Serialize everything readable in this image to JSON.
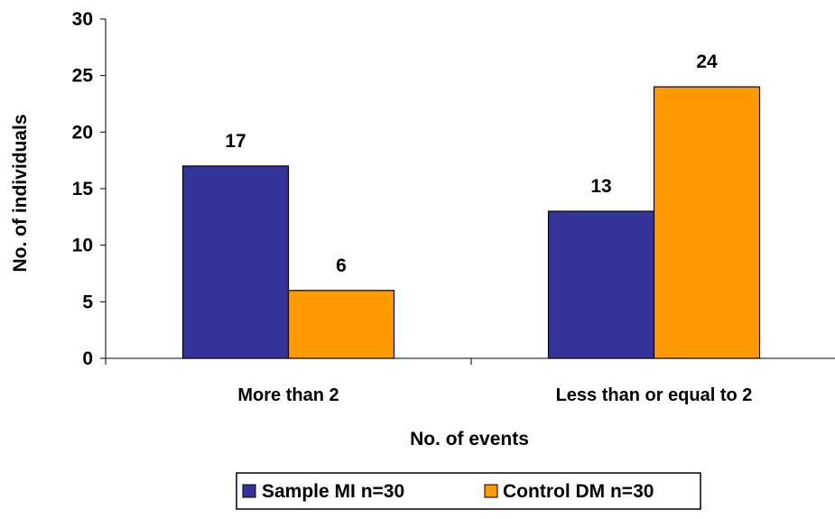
{
  "chart_data": {
    "type": "bar",
    "title": "",
    "xlabel": "No. of events",
    "ylabel": "No. of individuals",
    "categories": [
      "More than 2",
      "Less than or equal to 2"
    ],
    "series": [
      {
        "name": "Sample MI n=30",
        "values": [
          17,
          13
        ],
        "color": "#333399"
      },
      {
        "name": "Control DM n=30",
        "values": [
          6,
          24
        ],
        "color": "#FF9900"
      }
    ],
    "ylim": [
      0,
      30
    ],
    "yticks": [
      0,
      5,
      10,
      15,
      20,
      25,
      30
    ],
    "grid": false,
    "legend_position": "bottom"
  }
}
